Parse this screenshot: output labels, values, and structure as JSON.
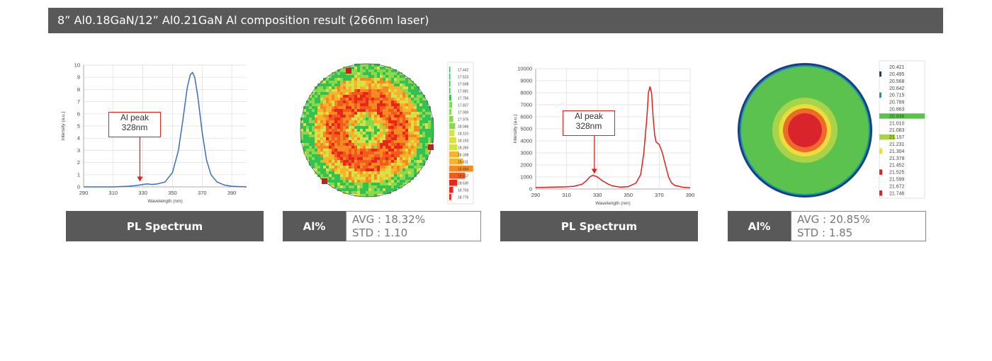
{
  "header": {
    "title": "8” Al0.18GaN/12” Al0.21GaN  Al composition result (266nm laser)"
  },
  "chart_data": [
    {
      "type": "line",
      "xlabel": "Wavelength (nm)",
      "ylabel": "Intensity (a.u.)",
      "xlim": [
        290,
        400
      ],
      "ylim": [
        0,
        10
      ],
      "x_ticks": [
        290,
        310,
        330,
        350,
        370,
        390
      ],
      "y_ticks": [
        0,
        1,
        2,
        3,
        4,
        5,
        6,
        7,
        8,
        9,
        10
      ],
      "grid": true,
      "color": "#3b6fb6",
      "series": [
        {
          "x": [
            290,
            300,
            310,
            320,
            325,
            330,
            333,
            336,
            340,
            345,
            350,
            354,
            357,
            360,
            362,
            363.5,
            365,
            367,
            370,
            373,
            376,
            380,
            385,
            390,
            400
          ],
          "y": [
            0,
            0,
            0,
            0.05,
            0.1,
            0.2,
            0.25,
            0.2,
            0.25,
            0.4,
            1.2,
            3.0,
            5.5,
            8.2,
            9.2,
            9.4,
            9.0,
            7.5,
            4.5,
            2.2,
            1.0,
            0.4,
            0.15,
            0.05,
            0
          ]
        }
      ],
      "annotation": {
        "line1": "Al peak",
        "line2": "328nm",
        "x": 328,
        "y": 0.2
      }
    },
    {
      "type": "line",
      "xlabel": "Wavelength (nm)",
      "ylabel": "Intensity (a.u.)",
      "xlim": [
        290,
        390
      ],
      "ylim": [
        0,
        10000
      ],
      "x_ticks": [
        290,
        310,
        330,
        350,
        370,
        390
      ],
      "y_ticks": [
        0,
        1000,
        2000,
        3000,
        4000,
        5000,
        6000,
        7000,
        8000,
        9000,
        10000
      ],
      "grid": true,
      "color": "#e0201c",
      "series": [
        {
          "x": [
            290,
            300,
            310,
            315,
            320,
            323,
            325,
            327,
            330,
            333,
            337,
            340,
            345,
            350,
            355,
            358,
            360,
            362,
            363,
            364,
            365,
            366,
            367,
            368,
            370,
            372,
            374,
            376,
            378,
            380,
            385,
            390
          ],
          "y": [
            120,
            150,
            180,
            230,
            400,
            700,
            1000,
            1150,
            1000,
            700,
            400,
            250,
            150,
            200,
            500,
            1200,
            3000,
            6000,
            8000,
            8500,
            8000,
            6000,
            4500,
            3900,
            3700,
            3000,
            2000,
            1000,
            500,
            300,
            150,
            100
          ]
        }
      ],
      "annotation": {
        "line1": "Al peak",
        "line2": "328nm",
        "x": 328,
        "y": 1150
      }
    }
  ],
  "map1": {
    "legend": [
      "17.442",
      "17.523",
      "17.608",
      "17.681",
      "17.756",
      "17.827",
      "17.900",
      "17.975",
      "18.046",
      "18.119",
      "18.193",
      "18.265",
      "18.338",
      "18.411",
      "18.484",
      "18.557",
      "18.630",
      "18.703",
      "18.776"
    ],
    "colors": [
      "#e8261a",
      "#f25a1e",
      "#f58a22",
      "#f8b32c",
      "#d8e043",
      "#8bd84a",
      "#35c052"
    ]
  },
  "map2": {
    "legend": [
      "20.421",
      "20.495",
      "20.568",
      "20.642",
      "20.715",
      "20.789",
      "20.863",
      "20.936",
      "21.010",
      "21.083",
      "21.157",
      "21.231",
      "21.304",
      "21.378",
      "21.452",
      "21.525",
      "21.599",
      "21.672",
      "21.746"
    ],
    "colors": [
      "#1a3d8a",
      "#1a9aa0",
      "#5bc24e",
      "#a9d44a",
      "#eddc3a",
      "#ee6a2a",
      "#d8242a"
    ]
  },
  "labels": {
    "pl1": "PL Spectrum",
    "al1": "Al%",
    "avg1": "AVG : 18.32%",
    "std1": "STD : 1.10",
    "pl2": "PL Spectrum",
    "al2": "Al%",
    "avg2": "AVG : 20.85%",
    "std2": "STD : 1.85"
  }
}
